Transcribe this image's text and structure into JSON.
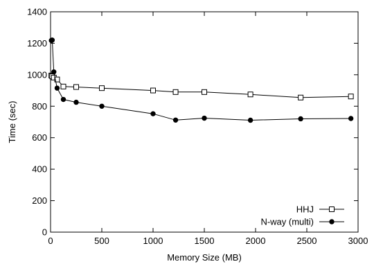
{
  "chart_data": {
    "type": "line",
    "title": "",
    "xlabel": "Memory Size (MB)",
    "ylabel": "Time (sec)",
    "xlim": [
      0,
      3000
    ],
    "ylim": [
      0,
      1400
    ],
    "xticks": [
      0,
      500,
      1000,
      1500,
      2000,
      2500,
      3000
    ],
    "yticks": [
      0,
      200,
      400,
      600,
      800,
      1000,
      1200,
      1400
    ],
    "grid": false,
    "legend_position": "bottom-right",
    "series": [
      {
        "name": "HHJ",
        "marker": "open-square",
        "color": "#000000",
        "x": [
          8,
          16,
          32,
          64,
          125,
          250,
          500,
          1000,
          1220,
          1500,
          1950,
          2440,
          2930
        ],
        "y": [
          995,
          990,
          982,
          970,
          925,
          922,
          915,
          900,
          890,
          890,
          875,
          855,
          862
        ]
      },
      {
        "name": "N-way (multi)",
        "marker": "filled-circle",
        "color": "#000000",
        "x": [
          8,
          16,
          32,
          64,
          125,
          250,
          500,
          1000,
          1220,
          1500,
          1950,
          2440,
          2930
        ],
        "y": [
          1218,
          1220,
          1018,
          915,
          843,
          825,
          800,
          752,
          712,
          724,
          711,
          720,
          722
        ]
      }
    ]
  }
}
